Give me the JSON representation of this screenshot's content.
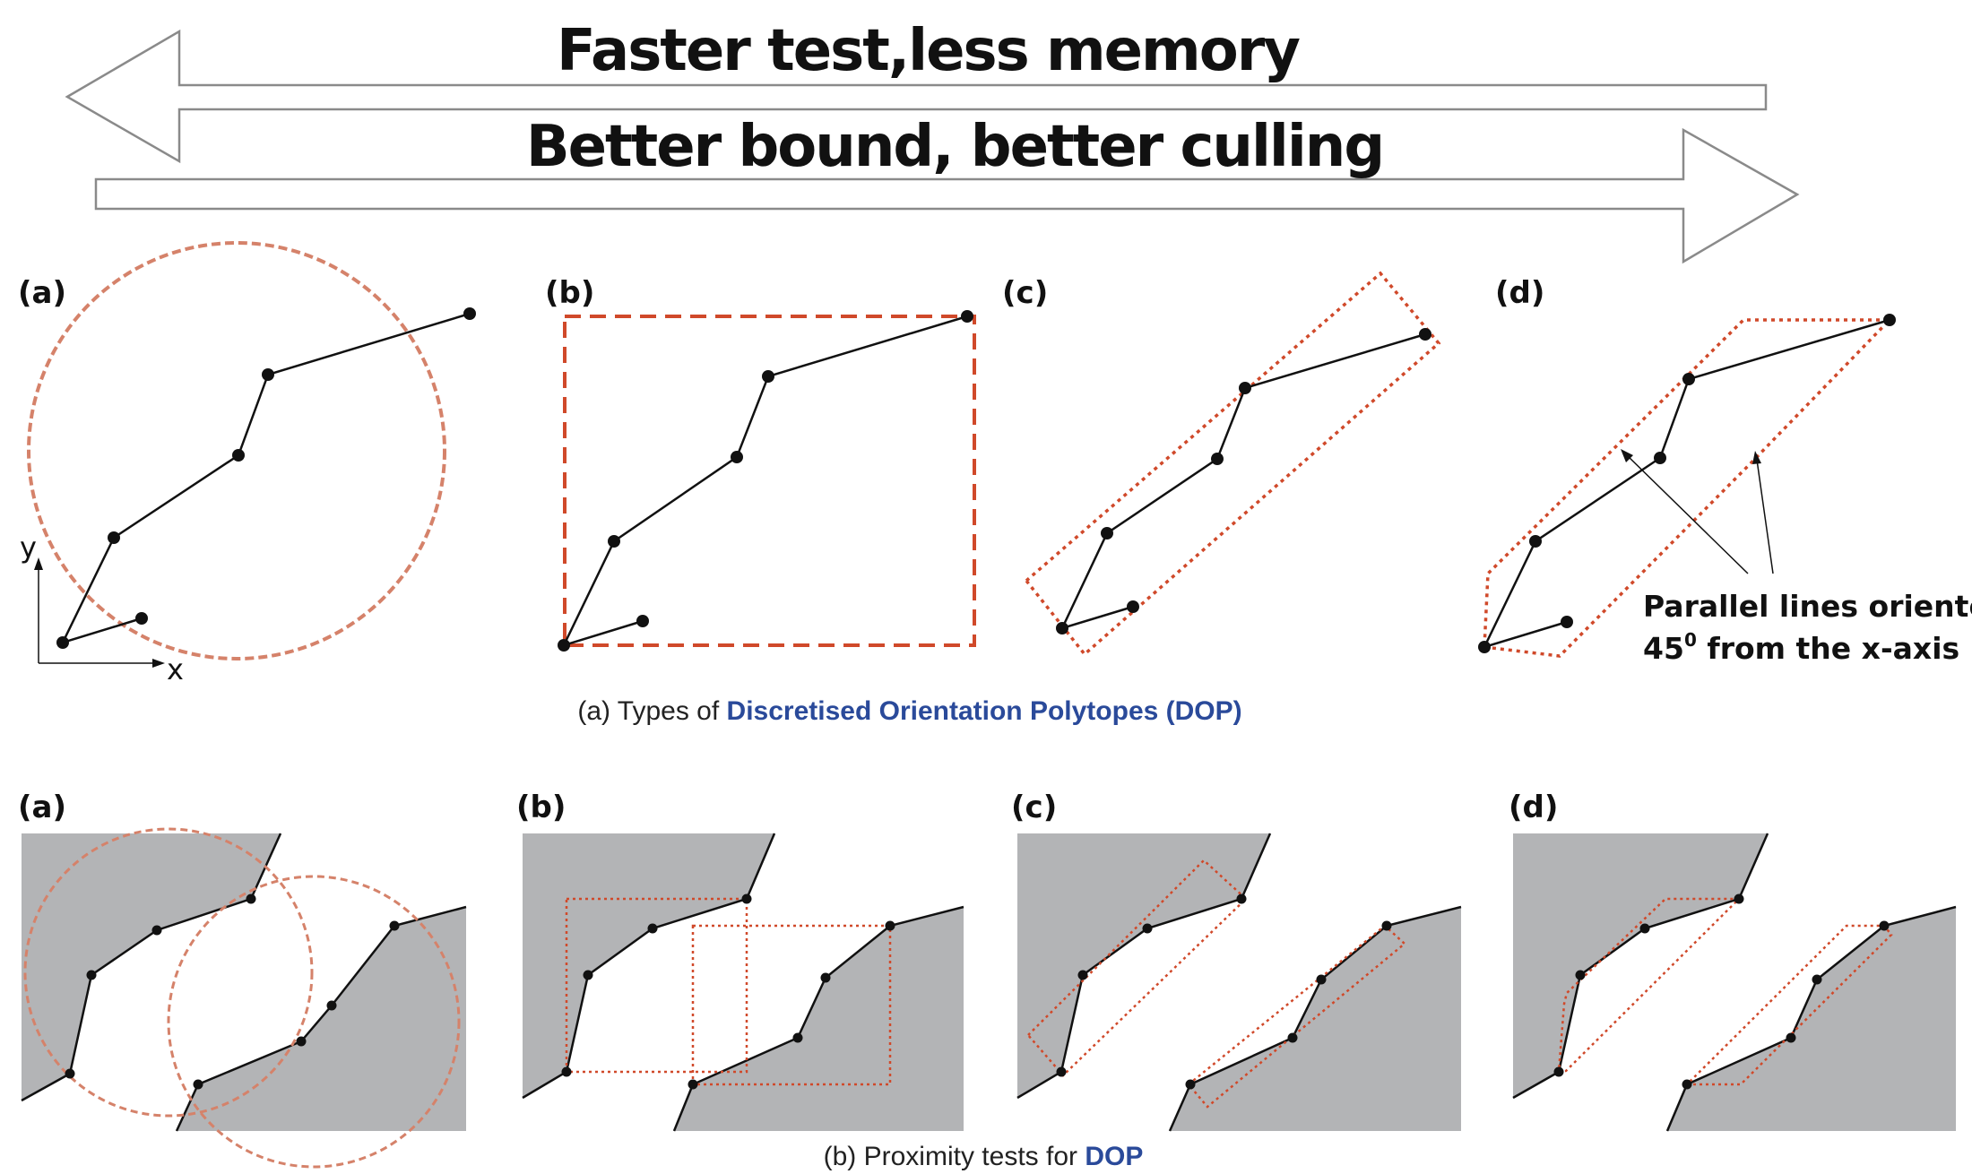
{
  "arrows": {
    "top_label": "Faster test,less memory",
    "bottom_label": "Better bound, better culling"
  },
  "top_row": {
    "panel_labels": [
      "(a)",
      "(b)",
      "(c)",
      "(d)"
    ],
    "axis_x": "x",
    "axis_y": "y",
    "annotation_line1": "Parallel lines oriented",
    "annotation_line2_prefix": "45",
    "annotation_line2_sup": "0",
    "annotation_line2_suffix": " from the x-axis",
    "caption_prefix": "(a) Types of ",
    "caption_emphasis": "Discretised Orientation Polytopes (DOP)"
  },
  "bottom_row": {
    "panel_labels": [
      "(a)",
      "(b)",
      "(c)",
      "(d)"
    ],
    "caption_prefix": "(b) Proximity tests for ",
    "caption_emphasis": "DOP"
  },
  "colors": {
    "bound_dashed": "#d0492a",
    "bound_circle": "#d5826a",
    "surface_gray": "#b3b4b6",
    "caption_accent": "#2a4a9a"
  }
}
